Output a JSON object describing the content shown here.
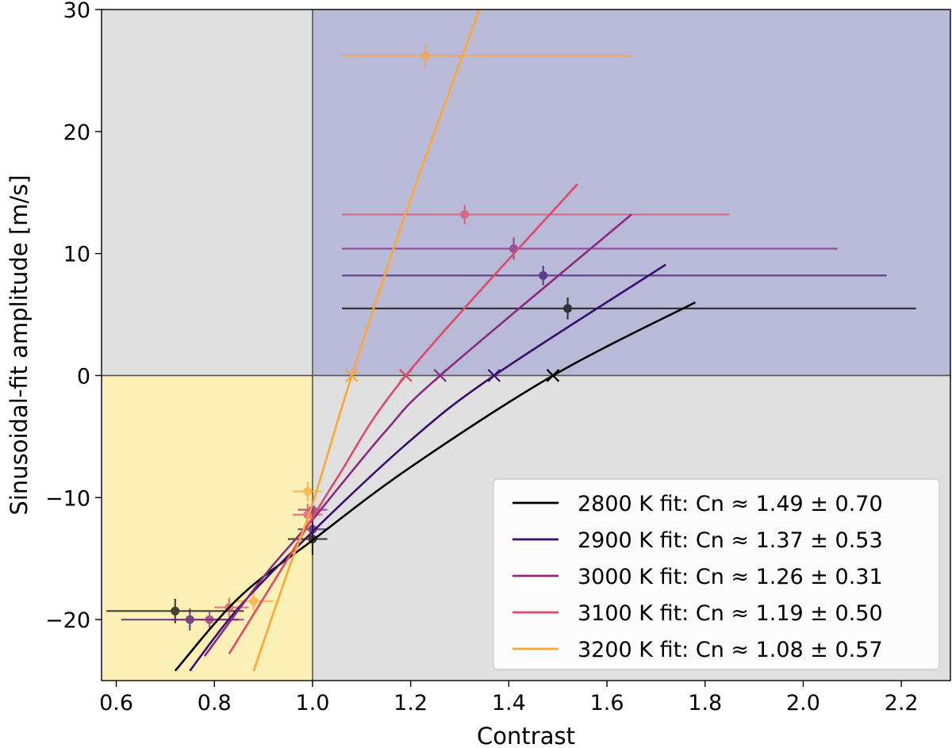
{
  "chart_data": {
    "type": "scatter",
    "xlabel": "Contrast",
    "ylabel": "Sinusoidal-fit amplitude [m/s]",
    "xlim": [
      0.57,
      2.3
    ],
    "ylim": [
      -25,
      30
    ],
    "xticks": [
      0.6,
      0.8,
      1.0,
      1.2,
      1.4,
      1.6,
      1.8,
      2.0,
      2.2
    ],
    "xtick_labels": [
      "0.6",
      "0.8",
      "1.0",
      "1.2",
      "1.4",
      "1.6",
      "1.8",
      "2.0",
      "2.2"
    ],
    "yticks": [
      -20,
      -10,
      0,
      10,
      20,
      30
    ],
    "ytick_labels": [
      "−20",
      "−10",
      "0",
      "10",
      "20",
      "30"
    ],
    "reference_lines": {
      "x": 1.0,
      "y": 0
    },
    "regions": [
      {
        "name": "lower-left",
        "x": [
          0.57,
          1.0
        ],
        "y": [
          -25,
          0
        ],
        "color": "#fbf0b5"
      },
      {
        "name": "upper-left",
        "x": [
          0.57,
          1.0
        ],
        "y": [
          0,
          30
        ],
        "color": "#e0e0e0"
      },
      {
        "name": "upper-right",
        "x": [
          1.0,
          2.3
        ],
        "y": [
          0,
          30
        ],
        "color": "#b9b9d8"
      },
      {
        "name": "lower-right",
        "x": [
          1.0,
          2.3
        ],
        "y": [
          -25,
          0
        ],
        "color": "#e0e0e0"
      }
    ],
    "legend_position": "bottom-right",
    "series": [
      {
        "name": "2800 K fit: Cn ≈ 1.49 ± 0.70",
        "color": "#000000",
        "fit": {
          "x": [
            0.72,
            0.85,
            1.0,
            1.2,
            1.49,
            1.78
          ],
          "y": [
            -24.2,
            -18.2,
            -13.5,
            -7.5,
            0,
            6.0
          ]
        },
        "crossing": 1.49,
        "points": [
          {
            "x": 0.72,
            "y": -19.3,
            "xerr_lo": 0.14,
            "xerr_hi": 0.14,
            "yerr": 1.0
          },
          {
            "x": 1.0,
            "y": -13.4,
            "xerr_lo": 0.05,
            "xerr_hi": 0.03,
            "yerr": 1.3
          },
          {
            "x": 1.52,
            "y": 5.5,
            "xerr_lo": 0.46,
            "xerr_hi": 0.71,
            "yerr": 0.9
          }
        ]
      },
      {
        "name": "2900 K fit: Cn ≈ 1.37 ± 0.53",
        "color": "#3b0f70",
        "fit": {
          "x": [
            0.75,
            0.85,
            1.0,
            1.2,
            1.37,
            1.72
          ],
          "y": [
            -24.2,
            -19.0,
            -12.8,
            -5.3,
            0,
            9.1
          ]
        },
        "crossing": 1.37,
        "points": [
          {
            "x": 0.75,
            "y": -20.0,
            "xerr_lo": 0.14,
            "xerr_hi": 0.1,
            "yerr": 0.9
          },
          {
            "x": 1.0,
            "y": -12.6,
            "xerr_lo": 0.03,
            "xerr_hi": 0.03,
            "yerr": 0.9
          },
          {
            "x": 1.47,
            "y": 8.2,
            "xerr_lo": 0.41,
            "xerr_hi": 0.7,
            "yerr": 0.8
          }
        ]
      },
      {
        "name": "3000 K fit: Cn ≈ 1.26 ± 0.31",
        "color": "#8c2981",
        "fit": {
          "x": [
            0.78,
            0.9,
            1.0,
            1.15,
            1.26,
            1.65
          ],
          "y": [
            -23.0,
            -16.5,
            -11.8,
            -4.5,
            0,
            13.2
          ]
        },
        "crossing": 1.26,
        "points": [
          {
            "x": 0.79,
            "y": -20.0,
            "xerr_lo": 0.08,
            "xerr_hi": 0.07,
            "yerr": 0.7
          },
          {
            "x": 1.0,
            "y": -11.0,
            "xerr_lo": 0.03,
            "xerr_hi": 0.03,
            "yerr": 0.8
          },
          {
            "x": 1.41,
            "y": 10.4,
            "xerr_lo": 0.35,
            "xerr_hi": 0.66,
            "yerr": 0.9
          }
        ]
      },
      {
        "name": "3100 K fit: Cn ≈ 1.19 ± 0.50",
        "color": "#de4968",
        "fit": {
          "x": [
            0.83,
            0.95,
            1.05,
            1.19,
            1.54
          ],
          "y": [
            -22.8,
            -15.0,
            -8.4,
            0,
            15.7
          ]
        },
        "crossing": 1.19,
        "points": [
          {
            "x": 0.83,
            "y": -19.0,
            "xerr_lo": 0.03,
            "xerr_hi": 0.04,
            "yerr": 0.8
          },
          {
            "x": 0.99,
            "y": -11.4,
            "xerr_lo": 0.03,
            "xerr_hi": 0.03,
            "yerr": 0.9
          },
          {
            "x": 1.31,
            "y": 13.2,
            "xerr_lo": 0.25,
            "xerr_hi": 0.54,
            "yerr": 0.8
          }
        ]
      },
      {
        "name": "3200 K fit: Cn ≈ 1.08 ± 0.57",
        "color": "#fca636",
        "fit": {
          "x": [
            0.88,
            0.95,
            1.0,
            1.08,
            1.2,
            1.34
          ],
          "y": [
            -24.2,
            -16.0,
            -10.5,
            0,
            14.5,
            30.0
          ]
        },
        "crossing": 1.08,
        "points": [
          {
            "x": 0.88,
            "y": -18.5,
            "xerr_lo": 0.04,
            "xerr_hi": 0.04,
            "yerr": 0.8
          },
          {
            "x": 0.99,
            "y": -9.5,
            "xerr_lo": 0.03,
            "xerr_hi": 0.03,
            "yerr": 0.8
          },
          {
            "x": 1.23,
            "y": 26.2,
            "xerr_lo": 0.17,
            "xerr_hi": 0.42,
            "yerr": 0.9
          }
        ]
      }
    ]
  }
}
